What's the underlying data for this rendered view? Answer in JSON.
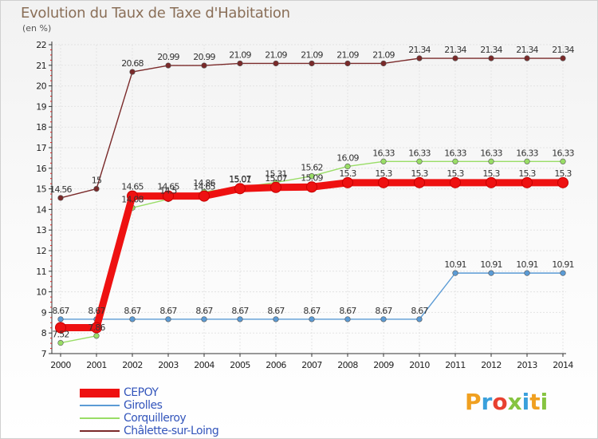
{
  "chart_data": {
    "type": "line",
    "title": "Evolution du Taux de Taxe d'Habitation",
    "subtitle": "(en %)",
    "xlabel": "",
    "ylabel": "",
    "ylim": [
      7,
      22
    ],
    "yticks": [
      "7",
      "8",
      "9",
      "10",
      "11",
      "12",
      "13",
      "14",
      "15",
      "16",
      "17",
      "18",
      "19",
      "20",
      "21",
      "22"
    ],
    "x": [
      "2000",
      "2001",
      "2002",
      "2003",
      "2004",
      "2005",
      "2006",
      "2007",
      "2008",
      "2009",
      "2010",
      "2011",
      "2012",
      "2013",
      "2014"
    ],
    "series": [
      {
        "name": "CEPOY",
        "color": "#ee1111",
        "values": [
          8.26,
          8.26,
          14.65,
          14.65,
          14.65,
          15.01,
          15.07,
          15.09,
          15.3,
          15.3,
          15.3,
          15.3,
          15.3,
          15.3,
          15.3
        ],
        "labels": [
          "",
          "",
          "14.65",
          "14.65",
          "14.65",
          "15.01",
          "15.07",
          "15.09",
          "15.3",
          "15.3",
          "15.3",
          "15.3",
          "15.3",
          "15.3",
          "15.3"
        ]
      },
      {
        "name": "Girolles",
        "color": "#5b9bd5",
        "values": [
          8.67,
          8.67,
          8.67,
          8.67,
          8.67,
          8.67,
          8.67,
          8.67,
          8.67,
          8.67,
          8.67,
          10.91,
          10.91,
          10.91,
          10.91
        ],
        "labels": [
          "8.67",
          "8.67",
          "8.67",
          "8.67",
          "8.67",
          "8.67",
          "8.67",
          "8.67",
          "8.67",
          "8.67",
          "8.67",
          "10.91",
          "10.91",
          "10.91",
          "10.91"
        ]
      },
      {
        "name": "Corquilleroy",
        "color": "#99dd66",
        "values": [
          7.52,
          7.86,
          14.08,
          14.5,
          14.86,
          15.07,
          15.31,
          15.62,
          16.09,
          16.33,
          16.33,
          16.33,
          16.33,
          16.33,
          16.33
        ],
        "labels": [
          "7.52",
          "7.86",
          "14.08",
          "14.5",
          "14.86",
          "15.07",
          "15.31",
          "15.62",
          "16.09",
          "16.33",
          "16.33",
          "16.33",
          "16.33",
          "16.33",
          "16.33"
        ]
      },
      {
        "name": "Châlette-sur-Loing",
        "color": "#7a2a2a",
        "values": [
          14.56,
          15,
          20.68,
          20.99,
          20.99,
          21.09,
          21.09,
          21.09,
          21.09,
          21.09,
          21.34,
          21.34,
          21.34,
          21.34,
          21.34
        ],
        "labels": [
          "14.56",
          "15",
          "20.68",
          "20.99",
          "20.99",
          "21.09",
          "21.09",
          "21.09",
          "21.09",
          "21.09",
          "21.34",
          "21.34",
          "21.34",
          "21.34",
          "21.34"
        ]
      }
    ]
  },
  "brand": {
    "letters": [
      "P",
      "r",
      "o",
      "x",
      "i",
      "t",
      "i"
    ]
  }
}
